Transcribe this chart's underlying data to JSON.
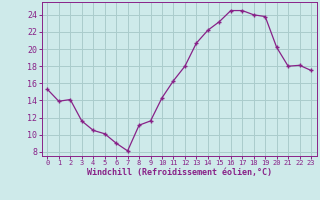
{
  "x": [
    0,
    1,
    2,
    3,
    4,
    5,
    6,
    7,
    8,
    9,
    10,
    11,
    12,
    13,
    14,
    15,
    16,
    17,
    18,
    19,
    20,
    21,
    22,
    23
  ],
  "y": [
    15.3,
    13.9,
    14.1,
    11.6,
    10.5,
    10.1,
    9.0,
    8.1,
    11.1,
    11.6,
    14.3,
    16.3,
    18.0,
    20.7,
    22.2,
    23.2,
    24.5,
    24.5,
    24.0,
    23.8,
    20.2,
    18.0,
    18.1,
    17.5
  ],
  "line_color": "#882288",
  "marker_color": "#882288",
  "bg_color": "#ceeaea",
  "grid_color": "#aacccc",
  "xlabel": "Windchill (Refroidissement éolien,°C)",
  "xlabel_color": "#882288",
  "ylabel_ticks": [
    8,
    10,
    12,
    14,
    16,
    18,
    20,
    22,
    24
  ],
  "xlim": [
    -0.5,
    23.5
  ],
  "ylim": [
    7.5,
    25.5
  ],
  "tick_label_color": "#882288",
  "axis_color": "#882288"
}
